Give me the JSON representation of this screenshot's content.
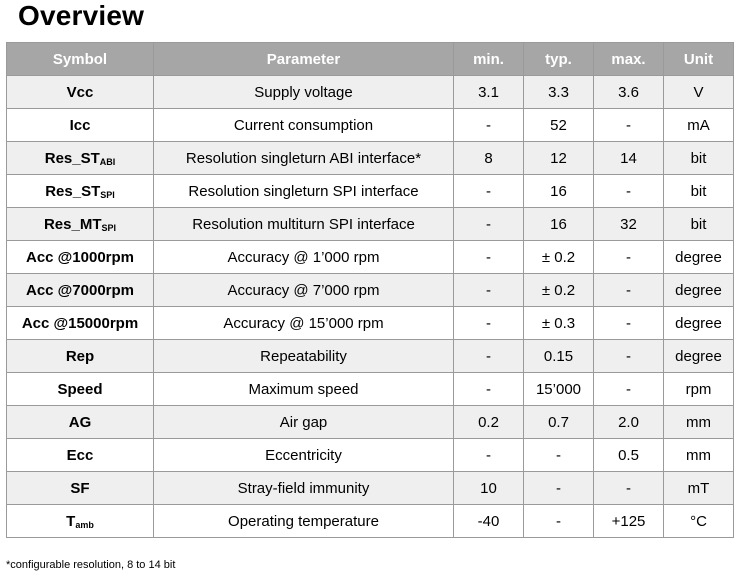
{
  "title": "Overview",
  "table": {
    "headers": [
      "Symbol",
      "Parameter",
      "min.",
      "typ.",
      "max.",
      "Unit"
    ],
    "rows": [
      {
        "symbol": "Vcc",
        "symbol_sub": "",
        "parameter": "Supply voltage",
        "min": "3.1",
        "typ": "3.3",
        "max": "3.6",
        "unit": "V"
      },
      {
        "symbol": "Icc",
        "symbol_sub": "",
        "parameter": "Current consumption",
        "min": "-",
        "typ": "52",
        "max": "-",
        "unit": "mA"
      },
      {
        "symbol": "Res_ST",
        "symbol_sub": "ABI",
        "parameter": "Resolution singleturn ABI interface*",
        "min": "8",
        "typ": "12",
        "max": "14",
        "unit": "bit"
      },
      {
        "symbol": "Res_ST",
        "symbol_sub": "SPI",
        "parameter": "Resolution singleturn SPI interface",
        "min": "-",
        "typ": "16",
        "max": "-",
        "unit": "bit"
      },
      {
        "symbol": "Res_MT",
        "symbol_sub": "SPI",
        "parameter": "Resolution multiturn SPI interface",
        "min": "-",
        "typ": "16",
        "max": "32",
        "unit": "bit"
      },
      {
        "symbol": "Acc @1000rpm",
        "symbol_sub": "",
        "parameter": "Accuracy @ 1’000 rpm",
        "min": "-",
        "typ": "± 0.2",
        "max": "-",
        "unit": "degree"
      },
      {
        "symbol": "Acc @7000rpm",
        "symbol_sub": "",
        "parameter": "Accuracy @ 7’000 rpm",
        "min": "-",
        "typ": "± 0.2",
        "max": "-",
        "unit": "degree"
      },
      {
        "symbol": "Acc @15000rpm",
        "symbol_sub": "",
        "parameter": "Accuracy @ 15’000 rpm",
        "min": "-",
        "typ": "± 0.3",
        "max": "-",
        "unit": "degree"
      },
      {
        "symbol": "Rep",
        "symbol_sub": "",
        "parameter": "Repeatability",
        "min": "-",
        "typ": "0.15",
        "max": "-",
        "unit": "degree"
      },
      {
        "symbol": "Speed",
        "symbol_sub": "",
        "parameter": "Maximum speed",
        "min": "-",
        "typ": "15’000",
        "max": "-",
        "unit": "rpm"
      },
      {
        "symbol": "AG",
        "symbol_sub": "",
        "parameter": "Air gap",
        "min": "0.2",
        "typ": "0.7",
        "max": "2.0",
        "unit": "mm"
      },
      {
        "symbol": "Ecc",
        "symbol_sub": "",
        "parameter": "Eccentricity",
        "min": "-",
        "typ": "-",
        "max": "0.5",
        "unit": "mm"
      },
      {
        "symbol": "SF",
        "symbol_sub": "",
        "parameter": "Stray-field immunity",
        "min": "10",
        "typ": "-",
        "max": "-",
        "unit": "mT"
      },
      {
        "symbol": "T",
        "symbol_sub": "amb",
        "parameter": "Operating temperature",
        "min": "-40",
        "typ": "-",
        "max": "+125",
        "unit": "°C"
      }
    ]
  },
  "footnote": "*configurable resolution, 8 to 14 bit"
}
